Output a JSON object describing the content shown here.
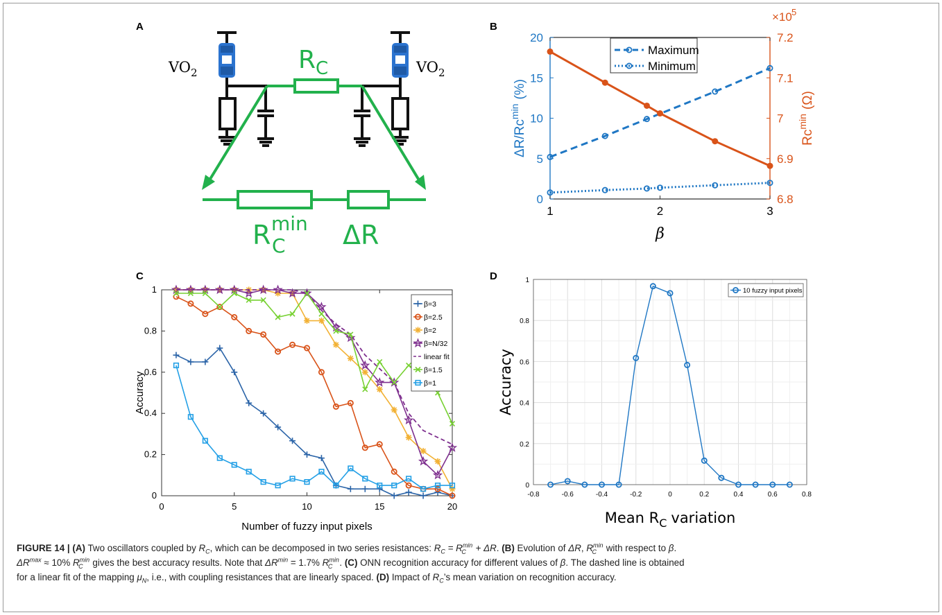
{
  "panel_labels": {
    "a": "A",
    "b": "B",
    "c": "C",
    "d": "D"
  },
  "circuit": {
    "vo2_left": "VO",
    "vo2_right": "VO",
    "vo2_sub": "2",
    "rc_main": "R",
    "rc_sub": "C",
    "rcmin_main": "R",
    "rcmin_sub": "C",
    "rcmin_sup": "min",
    "delta_r": "ΔR"
  },
  "colors": {
    "green": "#22b14c",
    "blue": "#1f77c4",
    "orange": "#d95319",
    "light_blue": "#24a0e6",
    "yellow": "#f2b134",
    "purple": "#7e2f8e",
    "lime": "#77d132",
    "navy": "#2b64a8"
  },
  "chart_data": [
    {
      "id": "B",
      "type": "line",
      "xlabel": "β",
      "ylabel_left": "ΔR/Rc",
      "ylabel_left_sup": "min",
      "ylabel_left_unit": "(%)",
      "ylabel_right": "Rc",
      "ylabel_right_sup": "min",
      "ylabel_right_unit": "(Ω)",
      "right_axis_multiplier": "×10",
      "right_axis_multiplier_exp": "5",
      "xlim": [
        1,
        3
      ],
      "ylim_left": [
        0,
        20
      ],
      "ylim_right": [
        6.8,
        7.2
      ],
      "xticks": [
        1,
        2,
        3
      ],
      "yticks_left": [
        0,
        5,
        10,
        15,
        20
      ],
      "yticks_right": [
        "6.8",
        "6.9",
        "7",
        "7.1",
        "7.2"
      ],
      "legend_position": "top",
      "series": [
        {
          "name": "Maximum",
          "axis": "left",
          "style": "dashed",
          "x": [
            1,
            1.5,
            1.88,
            2.5,
            3
          ],
          "y": [
            5.2,
            7.8,
            9.9,
            13.3,
            16.2
          ]
        },
        {
          "name": "Minimum",
          "axis": "left",
          "style": "dotted",
          "x": [
            1,
            1.5,
            1.88,
            2,
            2.5,
            3
          ],
          "y": [
            0.8,
            1.1,
            1.3,
            1.4,
            1.7,
            2.0
          ]
        },
        {
          "axis": "right",
          "style": "solid",
          "x": [
            1,
            1.5,
            1.88,
            2,
            2.5,
            3
          ],
          "y": [
            7.165,
            7.088,
            7.031,
            7.012,
            6.943,
            6.882
          ]
        }
      ]
    },
    {
      "id": "C",
      "type": "line",
      "xlabel": "Number of fuzzy input pixels",
      "ylabel": "Accuracy",
      "xlim": [
        0,
        20
      ],
      "ylim": [
        0,
        1
      ],
      "xticks": [
        0,
        5,
        10,
        15,
        20
      ],
      "yticks": [
        "0",
        "0.2",
        "0.4",
        "0.6",
        "0.8",
        "1"
      ],
      "grid": false,
      "legend_position": "top-right",
      "x": [
        1,
        2,
        3,
        4,
        5,
        6,
        7,
        8,
        9,
        10,
        11,
        12,
        13,
        14,
        15,
        16,
        17,
        18,
        19,
        20
      ],
      "series": [
        {
          "name": "β=3",
          "color": "#2b64a8",
          "marker": "plus",
          "values": [
            0.683,
            0.65,
            0.65,
            0.717,
            0.6,
            0.45,
            0.4,
            0.333,
            0.267,
            0.2,
            0.183,
            0.05,
            0.033,
            0.033,
            0.033,
            0.0,
            0.017,
            0.0,
            0.017,
            0.0
          ]
        },
        {
          "name": "β=2.5",
          "color": "#d95319",
          "marker": "circle",
          "values": [
            0.967,
            0.933,
            0.883,
            0.917,
            0.867,
            0.8,
            0.783,
            0.7,
            0.733,
            0.717,
            0.6,
            0.433,
            0.45,
            0.233,
            0.25,
            0.117,
            0.05,
            0.033,
            0.033,
            0.0
          ]
        },
        {
          "name": "β=2",
          "color": "#f2b134",
          "marker": "asterisk",
          "values": [
            1.0,
            1.0,
            1.0,
            1.0,
            1.0,
            1.0,
            1.0,
            0.983,
            0.983,
            0.85,
            0.85,
            0.733,
            0.667,
            0.6,
            0.517,
            0.417,
            0.283,
            0.217,
            0.167,
            0.033
          ]
        },
        {
          "name": "β=N/32",
          "color": "#7e2f8e",
          "marker": "star",
          "values": [
            1.0,
            1.0,
            1.0,
            1.0,
            1.0,
            0.983,
            1.0,
            1.0,
            0.983,
            0.983,
            0.917,
            0.817,
            0.767,
            0.633,
            0.55,
            0.55,
            0.367,
            0.167,
            0.1,
            0.233
          ]
        },
        {
          "name": "linear fit",
          "color": "#7e2f8e",
          "marker": "none",
          "style": "dashed",
          "values": [
            1.0,
            1.0,
            1.0,
            1.0,
            1.0,
            1.0,
            1.0,
            1.0,
            1.0,
            0.983,
            0.9,
            0.833,
            0.783,
            0.683,
            0.617,
            0.55,
            0.4,
            0.317,
            0.283,
            0.25
          ]
        },
        {
          "name": "β=1.5",
          "color": "#77d132",
          "marker": "cross",
          "values": [
            0.983,
            0.983,
            0.983,
            0.917,
            0.983,
            0.95,
            0.95,
            0.867,
            0.883,
            0.983,
            0.883,
            0.8,
            0.783,
            0.517,
            0.65,
            0.55,
            0.633,
            0.6,
            0.5,
            0.35
          ]
        },
        {
          "name": "β=1",
          "color": "#24a0e6",
          "marker": "square",
          "values": [
            0.633,
            0.383,
            0.267,
            0.183,
            0.15,
            0.117,
            0.067,
            0.05,
            0.083,
            0.067,
            0.117,
            0.05,
            0.133,
            0.083,
            0.05,
            0.05,
            0.083,
            0.033,
            0.05,
            0.05
          ]
        }
      ]
    },
    {
      "id": "D",
      "type": "line",
      "xlabel": "Mean R",
      "xlabel_sub": "C",
      "xlabel_suffix": "variation",
      "ylabel": "Accuracy",
      "xlim": [
        -0.8,
        0.8
      ],
      "ylim": [
        0,
        1
      ],
      "xticks": [
        "-0.8",
        "-0.6",
        "-0.4",
        "-0.2",
        "0",
        "0.2",
        "0.4",
        "0.6",
        "0.8"
      ],
      "yticks": [
        "0",
        "0.2",
        "0.4",
        "0.6",
        "0.8",
        "1"
      ],
      "grid": true,
      "legend_position": "top-right",
      "series": [
        {
          "name": "10 fuzzy input pixels",
          "color": "#1f77c4",
          "marker": "circle",
          "x": [
            -0.7,
            -0.6,
            -0.5,
            -0.4,
            -0.3,
            -0.2,
            -0.1,
            0.0,
            0.1,
            0.2,
            0.3,
            0.4,
            0.5,
            0.6,
            0.7
          ],
          "y": [
            0.0,
            0.017,
            0.0,
            0.0,
            0.0,
            0.617,
            0.967,
            0.933,
            0.583,
            0.117,
            0.033,
            0.0,
            0.0,
            0.0,
            0.0
          ]
        }
      ]
    }
  ],
  "caption": {
    "fig_label": "FIGURE 14 |",
    "a_label": "(A)",
    "a_t1": " Two oscillators coupled by ",
    "a_rc": "R",
    "a_rc_sub": "C",
    "a_t2": ", which can be decomposed in two series resistances: ",
    "a_eq1": "R",
    "a_eq1_sub": "C",
    "a_eq2": " = R",
    "a_eq2_sub": "C",
    "a_eq2_sup": "min",
    "a_eq3": " + ΔR",
    "a_t3": ". ",
    "b_label": "(B)",
    "b_t1": " Evolution of ",
    "b_dr": "ΔR",
    "b_t2": ", ",
    "b_r": "R",
    "b_r_sub": "C",
    "b_r_sup": "min",
    "b_t3": " with respect to ",
    "b_beta": "β",
    "b_t4": ".",
    "b2_dr": "ΔR",
    "b2_dr_sup": "max",
    "b2_t1": " ≈ 10% ",
    "b2_r": "R",
    "b2_r_sub": "C",
    "b2_r_sup": "min",
    "b2_t2": " gives the best accuracy results. Note that ",
    "b2_dr2": "ΔR",
    "b2_dr2_sup": "min",
    "b2_t3": " = 1.7% ",
    "b2_r2": "R",
    "b2_r2_sub": "C",
    "b2_r2_sup": "min",
    "b2_t4": ". ",
    "c_label": "(C)",
    "c_t1": " ONN recognition accuracy for different values of ",
    "c_beta": "β",
    "c_t2": ". The dashed line is obtained",
    "c2_t1": "for a linear fit of the mapping ",
    "c2_mu": "μ",
    "c2_mu_sub": "N",
    "c2_t2": ", i.e., with coupling resistances that are linearly spaced. ",
    "d_label": "(D)",
    "d_t1": " Impact of ",
    "d_r": "R",
    "d_r_sub": "C",
    "d_t2": "’s mean variation on recognition accuracy."
  }
}
